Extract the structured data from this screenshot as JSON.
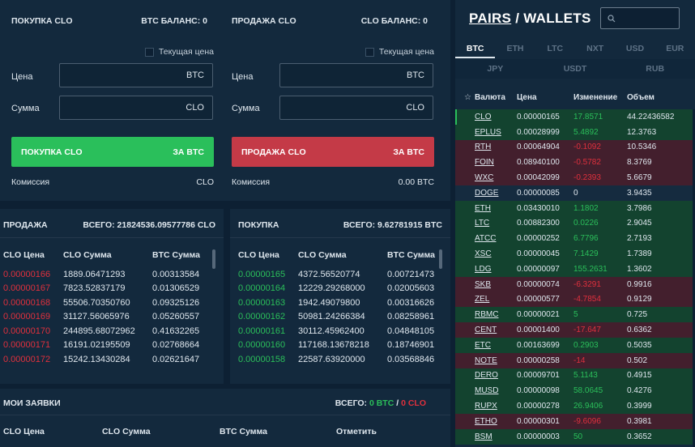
{
  "buy_form": {
    "title": "ПОКУПКА CLO",
    "balance": "BTC БАЛАНС: 0",
    "current_price": "Текущая цена",
    "price_label": "Цена",
    "price_unit": "BTC",
    "amount_label": "Сумма",
    "amount_unit": "CLO",
    "button_left": "ПОКУПКА CLO",
    "button_right": "ЗА BTC",
    "fee_label": "Комиссия",
    "fee_value": "CLO"
  },
  "sell_form": {
    "title": "ПРОДАЖА CLO",
    "balance": "CLO БАЛАНС: 0",
    "current_price": "Текущая цена",
    "price_label": "Цена",
    "price_unit": "BTC",
    "amount_label": "Сумма",
    "amount_unit": "CLO",
    "button_left": "ПРОДАЖА CLO",
    "button_right": "ЗА BTC",
    "fee_label": "Комиссия",
    "fee_value": "0.00 BTC"
  },
  "sell_book": {
    "title": "ПРОДАЖА",
    "total": "ВСЕГО: 21824536.09577786 CLO",
    "columns": [
      "CLO Цена",
      "CLO Сумма",
      "BTC Сумма"
    ],
    "rows": [
      [
        "0.00000166",
        "1889.06471293",
        "0.00313584"
      ],
      [
        "0.00000167",
        "7823.52837179",
        "0.01306529"
      ],
      [
        "0.00000168",
        "55506.70350760",
        "0.09325126"
      ],
      [
        "0.00000169",
        "31127.56065976",
        "0.05260557"
      ],
      [
        "0.00000170",
        "244895.68072962",
        "0.41632265"
      ],
      [
        "0.00000171",
        "16191.02195509",
        "0.02768664"
      ],
      [
        "0.00000172",
        "15242.13430284",
        "0.02621647"
      ]
    ]
  },
  "buy_book": {
    "title": "ПОКУПКА",
    "total": "ВСЕГО: 9.62781915 BTC",
    "columns": [
      "CLO Цена",
      "CLO Сумма",
      "BTC Сумма"
    ],
    "rows": [
      [
        "0.00000165",
        "4372.56520774",
        "0.00721473"
      ],
      [
        "0.00000164",
        "12229.29268000",
        "0.02005603"
      ],
      [
        "0.00000163",
        "1942.49079800",
        "0.00316626"
      ],
      [
        "0.00000162",
        "50981.24266384",
        "0.08258961"
      ],
      [
        "0.00000161",
        "30112.45962400",
        "0.04848105"
      ],
      [
        "0.00000160",
        "117168.13678218",
        "0.18746901"
      ],
      [
        "0.00000158",
        "22587.63920000",
        "0.03568846"
      ]
    ]
  },
  "my_orders": {
    "title": "МОИ ЗАЯВКИ",
    "total_prefix": "ВСЕГО: ",
    "total_btc": "0 BTC",
    "slash": " / ",
    "total_clo": "0 CLO",
    "columns": [
      "CLO Цена",
      "CLO Сумма",
      "BTC Сумма",
      "Отметить"
    ]
  },
  "pairs": {
    "title_a": "PAIRS",
    "title_b": " / WALLETS",
    "search_icon": "search-icon",
    "tabs_row1": [
      "BTC",
      "ETH",
      "LTC",
      "NXT",
      "USD",
      "EUR"
    ],
    "tabs_row2": [
      "JPY",
      "USDT",
      "RUB"
    ],
    "active_tab": "BTC",
    "columns": [
      "Валюта",
      "Цена",
      "Изменение",
      "Объем"
    ],
    "star": "☆",
    "rows": [
      {
        "sym": "CLO",
        "price": "0.00000165",
        "chg": "17.8571",
        "vol": "44.22436582",
        "dir": "up"
      },
      {
        "sym": "EPLUS",
        "price": "0.00028999",
        "chg": "5.4892",
        "vol": "12.3763",
        "dir": "up"
      },
      {
        "sym": "RTH",
        "price": "0.00064904",
        "chg": "-0.1092",
        "vol": "10.5346",
        "dir": "dn"
      },
      {
        "sym": "FOIN",
        "price": "0.08940100",
        "chg": "-0.5782",
        "vol": "8.3769",
        "dir": "dn"
      },
      {
        "sym": "WXC",
        "price": "0.00042099",
        "chg": "-0.2393",
        "vol": "5.6679",
        "dir": "dn"
      },
      {
        "sym": "DOGE",
        "price": "0.00000085",
        "chg": "0",
        "vol": "3.9435",
        "dir": "zero"
      },
      {
        "sym": "ETH",
        "price": "0.03430010",
        "chg": "1.1802",
        "vol": "3.7986",
        "dir": "up"
      },
      {
        "sym": "LTC",
        "price": "0.00882300",
        "chg": "0.0226",
        "vol": "2.9045",
        "dir": "up"
      },
      {
        "sym": "ATCC",
        "price": "0.00000252",
        "chg": "6.7796",
        "vol": "2.7193",
        "dir": "up"
      },
      {
        "sym": "XSC",
        "price": "0.00000045",
        "chg": "7.1429",
        "vol": "1.7389",
        "dir": "up"
      },
      {
        "sym": "LDG",
        "price": "0.00000097",
        "chg": "155.2631",
        "vol": "1.3602",
        "dir": "up"
      },
      {
        "sym": "SKB",
        "price": "0.00000074",
        "chg": "-6.3291",
        "vol": "0.9916",
        "dir": "dn"
      },
      {
        "sym": "ZEL",
        "price": "0.00000577",
        "chg": "-4.7854",
        "vol": "0.9129",
        "dir": "dn"
      },
      {
        "sym": "RBMC",
        "price": "0.00000021",
        "chg": "5",
        "vol": "0.725",
        "dir": "up"
      },
      {
        "sym": "CENT",
        "price": "0.00001400",
        "chg": "-17.647",
        "vol": "0.6362",
        "dir": "dn"
      },
      {
        "sym": "ETC",
        "price": "0.00163699",
        "chg": "0.2903",
        "vol": "0.5035",
        "dir": "up"
      },
      {
        "sym": "NOTE",
        "price": "0.00000258",
        "chg": "-14",
        "vol": "0.502",
        "dir": "dn"
      },
      {
        "sym": "DERO",
        "price": "0.00009701",
        "chg": "5.1143",
        "vol": "0.4915",
        "dir": "up"
      },
      {
        "sym": "MUSD",
        "price": "0.00000098",
        "chg": "58.0645",
        "vol": "0.4276",
        "dir": "up"
      },
      {
        "sym": "RUPX",
        "price": "0.00000278",
        "chg": "26.9406",
        "vol": "0.3999",
        "dir": "up"
      },
      {
        "sym": "ETHO",
        "price": "0.00000301",
        "chg": "-9.6096",
        "vol": "0.3981",
        "dir": "dn"
      },
      {
        "sym": "BSM",
        "price": "0.00000003",
        "chg": "50",
        "vol": "0.3652",
        "dir": "up"
      }
    ]
  },
  "colors": {
    "background": "#0d2033",
    "panel": "#13293d",
    "buy_green": "#2abf5b",
    "sell_red": "#c43a47",
    "up_row": "#13432f",
    "down_row": "#431f2d"
  }
}
